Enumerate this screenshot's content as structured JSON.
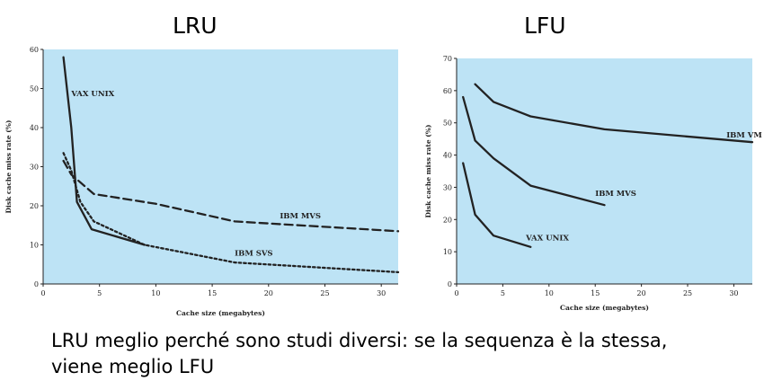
{
  "chart_data": [
    {
      "type": "line",
      "title": "LRU",
      "xlabel": "Cache size (megabytes)",
      "ylabel": "Disk cache miss rate (%)",
      "xlim": [
        0,
        31.5
      ],
      "ylim": [
        0,
        60
      ],
      "xticks": [
        0,
        5,
        10,
        15,
        20,
        25,
        30
      ],
      "yticks": [
        0,
        10,
        20,
        30,
        40,
        50,
        60
      ],
      "grid": false,
      "background": "#bde3f5",
      "series": [
        {
          "name": "VAX UNIX",
          "style": "solid",
          "label_at": [
            2.5,
            48
          ],
          "x": [
            1.8,
            2.5,
            3.0,
            4.3,
            9.0
          ],
          "y": [
            58,
            40,
            21,
            14,
            10
          ]
        },
        {
          "name": "IBM MVS",
          "style": "dashed",
          "label_at": [
            21,
            16.8
          ],
          "x": [
            1.8,
            2.5,
            4.5,
            10,
            17,
            31.5
          ],
          "y": [
            31.5,
            28,
            23,
            20.5,
            16,
            13.5
          ]
        },
        {
          "name": "IBM SVS",
          "style": "dotted",
          "label_at": [
            17,
            7.2
          ],
          "x": [
            1.8,
            2.5,
            3.3,
            4.5,
            9.0,
            17,
            31.5
          ],
          "y": [
            33.5,
            29,
            21,
            16,
            10,
            5.5,
            3
          ]
        }
      ]
    },
    {
      "type": "line",
      "title": "LFU",
      "xlabel": "Cache size (megabytes)",
      "ylabel": "Disk cache miss rate (%)",
      "xlim": [
        0,
        32
      ],
      "ylim": [
        0,
        70
      ],
      "xticks": [
        0,
        5,
        10,
        15,
        20,
        25,
        30
      ],
      "yticks": [
        0,
        10,
        20,
        30,
        40,
        50,
        60,
        70
      ],
      "grid": false,
      "background": "#bde3f5",
      "series": [
        {
          "name": "IBM VM",
          "style": "solid",
          "label_at": [
            29.2,
            45.5
          ],
          "x": [
            2,
            4,
            8,
            16,
            32
          ],
          "y": [
            62,
            56.5,
            52,
            48,
            44
          ]
        },
        {
          "name": "IBM MVS",
          "style": "solid",
          "label_at": [
            15,
            27.3
          ],
          "x": [
            0.7,
            2,
            4,
            8,
            16
          ],
          "y": [
            58,
            44.5,
            39,
            30.5,
            24.5
          ]
        },
        {
          "name": "VAX UNIX",
          "style": "solid",
          "label_at": [
            7.5,
            13.5
          ],
          "x": [
            0.7,
            2,
            4,
            8
          ],
          "y": [
            37.5,
            21.5,
            15,
            11.5
          ]
        }
      ]
    }
  ],
  "caption": {
    "line1": "LRU meglio perché sono studi diversi: se la sequenza è la stessa,",
    "line2": "viene meglio LFU"
  }
}
